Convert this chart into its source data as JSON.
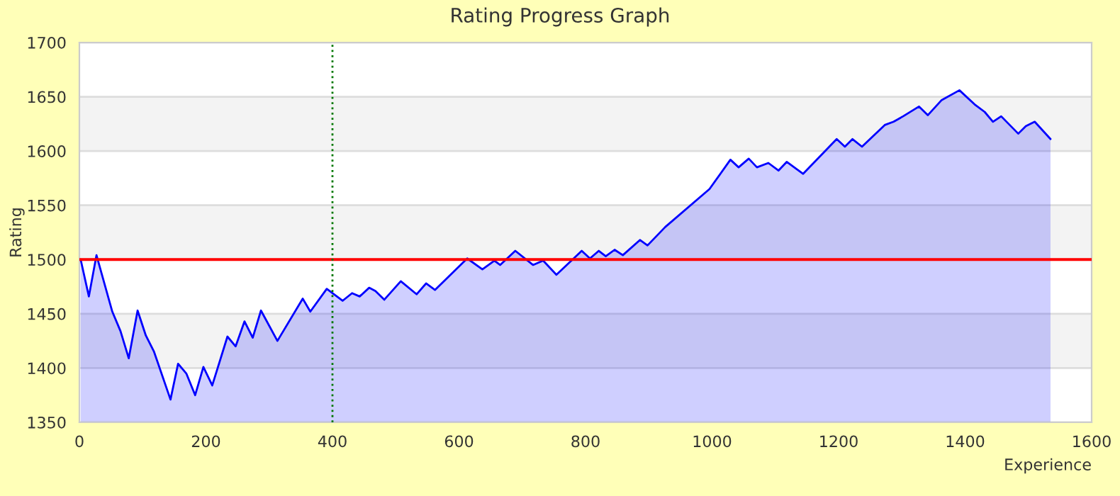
{
  "chart_data": {
    "type": "area",
    "title": "Rating Progress Graph",
    "xlabel": "Experience",
    "ylabel": "Rating",
    "x": [
      2,
      15,
      27,
      52,
      65,
      78,
      92,
      105,
      118,
      144,
      156,
      169,
      183,
      196,
      210,
      234,
      247,
      261,
      274,
      287,
      313,
      353,
      365,
      391,
      416,
      431,
      443,
      458,
      468,
      482,
      508,
      533,
      548,
      562,
      613,
      637,
      656,
      665,
      689,
      717,
      733,
      754,
      794,
      807,
      821,
      832,
      846,
      859,
      886,
      898,
      926,
      996,
      1029,
      1042,
      1058,
      1071,
      1089,
      1105,
      1118,
      1144,
      1197,
      1210,
      1222,
      1237,
      1273,
      1287,
      1302,
      1327,
      1341,
      1363,
      1391,
      1415,
      1431,
      1444,
      1457,
      1484,
      1496,
      1510,
      1535
    ],
    "series": [
      {
        "color": "#0000ff",
        "values": [
          1500,
          1466,
          1504,
          1452,
          1434,
          1409,
          1453,
          1430,
          1415,
          1371,
          1404,
          1395,
          1375,
          1401,
          1384,
          1429,
          1420,
          1443,
          1428,
          1453,
          1425,
          1464,
          1452,
          1473,
          1462,
          1469,
          1466,
          1474,
          1471,
          1463,
          1480,
          1468,
          1478,
          1472,
          1501,
          1491,
          1499,
          1495,
          1508,
          1495,
          1499,
          1486,
          1508,
          1501,
          1508,
          1503,
          1509,
          1504,
          1518,
          1513,
          1530,
          1565,
          1592,
          1585,
          1593,
          1585,
          1589,
          1582,
          1590,
          1579,
          1611,
          1604,
          1611,
          1604,
          1624,
          1627,
          1632,
          1641,
          1633,
          1647,
          1656,
          1643,
          1636,
          1627,
          1632,
          1616,
          1623,
          1627,
          1611
        ]
      }
    ],
    "xlim": [
      0,
      1600
    ],
    "xticks": [
      0,
      200,
      400,
      600,
      800,
      1000,
      1200,
      1400,
      1600
    ],
    "ylim": [
      1350,
      1700
    ],
    "yticks": [
      1350,
      1400,
      1450,
      1500,
      1550,
      1600,
      1650,
      1700
    ],
    "grid": "y",
    "ref_lines": [
      {
        "axis": "y",
        "value": 1500,
        "color": "#ff0000",
        "line_style": "solid"
      },
      {
        "axis": "x",
        "value": 400,
        "color": "#007700",
        "line_style": "dotted"
      }
    ]
  }
}
